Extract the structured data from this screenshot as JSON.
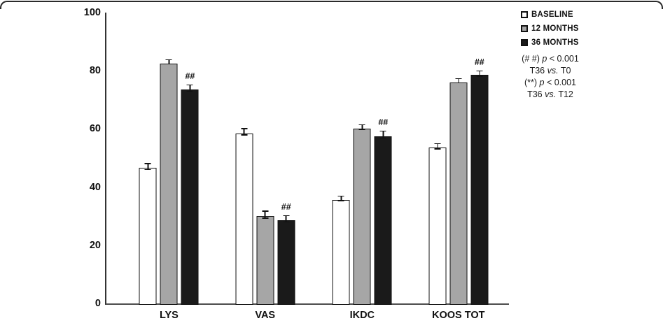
{
  "chart_data": {
    "type": "bar",
    "title": "",
    "xlabel": "",
    "ylabel": "",
    "categories": [
      "LYS",
      "VAS",
      "IKDC",
      "KOOS TOT"
    ],
    "series": [
      {
        "name": "BASELINE",
        "color": "#ffffff",
        "border": "#111111",
        "values": [
          47,
          59,
          36,
          54
        ],
        "errors": [
          1.2,
          1.2,
          1.0,
          1.0
        ]
      },
      {
        "name": "12 MONTHS",
        "color": "#a6a6a6",
        "border": "#111111",
        "values": [
          83,
          30.5,
          60.5,
          76.5
        ],
        "errors": [
          0.8,
          1.3,
          1.0,
          0.8
        ]
      },
      {
        "name": "36 MONTHS",
        "color": "#1a1a1a",
        "border": "#111111",
        "values": [
          74,
          29,
          58,
          79
        ],
        "errors": [
          1.2,
          1.2,
          1.3,
          1.0
        ]
      }
    ],
    "significance": {
      "label": "##",
      "series": "36 MONTHS",
      "series_index": 2,
      "applies_to_categories": [
        "LYS",
        "VAS",
        "IKDC",
        "KOOS TOT"
      ]
    },
    "ylim": [
      0,
      100
    ],
    "yticks": [
      0,
      20,
      40,
      60,
      80,
      100
    ],
    "grid": false,
    "legend_position": "top-right"
  },
  "legend_note": {
    "lines": [
      {
        "pre": "(# #) ",
        "italic": "p",
        "post": " < 0.001"
      },
      {
        "pre": "T36 ",
        "italic": "vs.",
        "post": " T0"
      },
      {
        "pre": "(**) ",
        "italic": "p",
        "post": " < 0.001"
      },
      {
        "pre": "T36 ",
        "italic": "vs.",
        "post": " T12"
      }
    ]
  },
  "colors": {
    "axis": "#333333",
    "frame": "#2b2b2b",
    "text": "#111111"
  }
}
